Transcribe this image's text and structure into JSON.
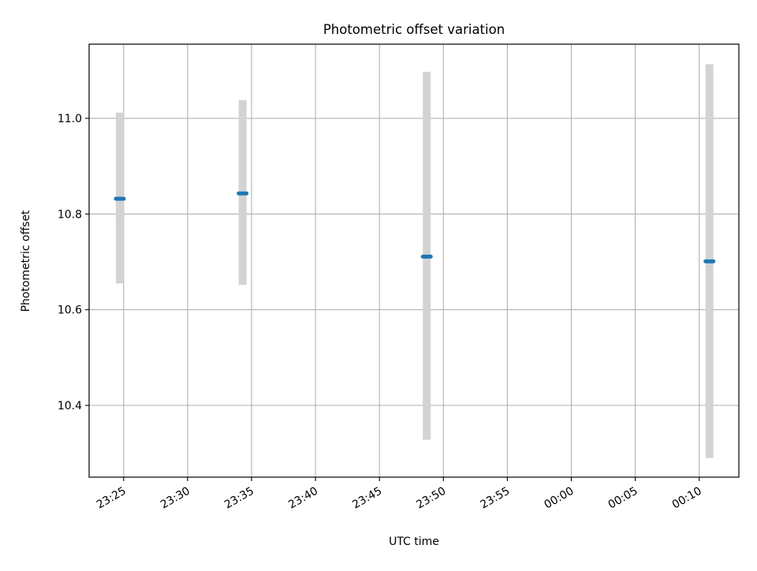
{
  "chart_data": {
    "type": "scatter",
    "title": "Photometric offset variation",
    "xlabel": "UTC time",
    "ylabel": "Photometric offset",
    "x_ticks": [
      "23:25",
      "23:30",
      "23:35",
      "23:40",
      "23:45",
      "23:50",
      "23:55",
      "00:00",
      "00:05",
      "00:10"
    ],
    "x_tick_minutes": [
      0,
      5,
      10,
      15,
      20,
      25,
      30,
      35,
      40,
      45
    ],
    "y_ticks": [
      "10.4",
      "10.6",
      "10.8",
      "11.0"
    ],
    "y_tick_values": [
      10.4,
      10.6,
      10.8,
      11.0
    ],
    "xlim_minutes": [
      -2.7,
      48.1
    ],
    "ylim": [
      10.25,
      11.155
    ],
    "grid": true,
    "series": [
      {
        "x_minutes": [
          -0.3,
          9.3,
          23.7,
          45.8
        ],
        "y": [
          10.832,
          10.843,
          10.711,
          10.701
        ],
        "y_err_low": [
          10.655,
          10.652,
          10.328,
          10.29
        ],
        "y_err_high": [
          11.012,
          11.038,
          11.097,
          11.113
        ],
        "color": "#1f77b4",
        "error_color": "#d3d3d3"
      }
    ]
  }
}
